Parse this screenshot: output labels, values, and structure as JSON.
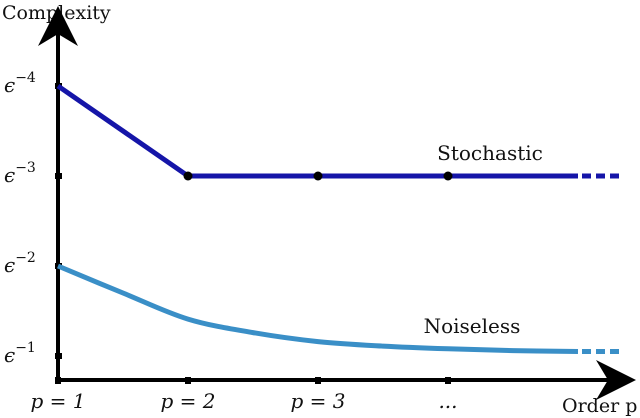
{
  "chart_data": {
    "type": "line",
    "ylabel": "Complexity",
    "xlabel": "Order p",
    "x_ticks": [
      "p = 1",
      "p = 2",
      "p = 3",
      "..."
    ],
    "y_ticks": [
      {
        "base": "ϵ",
        "exp": "−1",
        "level": 1
      },
      {
        "base": "ϵ",
        "exp": "−2",
        "level": 2
      },
      {
        "base": "ϵ",
        "exp": "−3",
        "level": 3
      },
      {
        "base": "ϵ",
        "exp": "−4",
        "level": 4
      }
    ],
    "series": [
      {
        "name": "Stochastic",
        "color": "#1515a8",
        "x": [
          1,
          2,
          3,
          4,
          5
        ],
        "y": [
          4,
          3,
          3,
          3,
          3
        ],
        "marker_x": [
          2,
          3,
          4
        ],
        "continues": true
      },
      {
        "name": "Noiseless",
        "color": "#3a8fc7",
        "x": [
          1,
          1.5,
          2,
          2.5,
          3,
          3.5,
          4,
          4.5,
          5
        ],
        "y": [
          2,
          1.7,
          1.41,
          1.26,
          1.16,
          1.11,
          1.08,
          1.06,
          1.05
        ],
        "continues": true
      }
    ],
    "xlim": [
      1,
      5.5
    ],
    "ylim": [
      0.7,
      4.7
    ]
  }
}
